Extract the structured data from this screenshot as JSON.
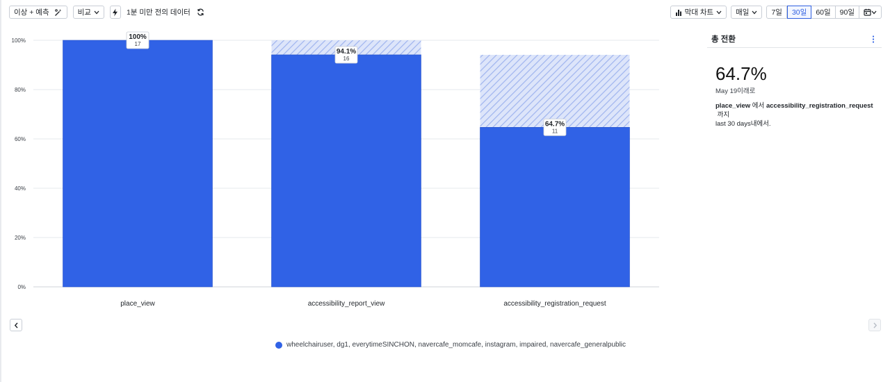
{
  "toolbar": {
    "anomaly_label": "이상 + 예측",
    "compare_label": "비교",
    "freshness_label": "1분 미만 전의 데이터",
    "chart_type_label": "막대 차트",
    "interval_label": "매일",
    "ranges": [
      "7일",
      "30일",
      "60일",
      "90일"
    ],
    "active_range": "30일"
  },
  "panel": {
    "title": "총 전환",
    "value": "64.7%",
    "since": "May 19이래로",
    "from_event": "place_view",
    "from_suffix": " 에서 ",
    "to_event": "accessibility_registration_request",
    "to_suffix": " 까지",
    "period": "last 30 days내에서."
  },
  "legend": {
    "label": "wheelchairuser, dg1, everytimeSINCHON, navercafe_momcafe, instagram, impaired, navercafe_generalpublic",
    "color": "#3062e6"
  },
  "chart_data": {
    "type": "bar",
    "categories": [
      "place_view",
      "accessibility_report_view",
      "accessibility_registration_request"
    ],
    "values": [
      100,
      94.1,
      64.7
    ],
    "value_labels": [
      "100%",
      "94.1%",
      "64.7%"
    ],
    "counts": [
      17,
      16,
      11
    ],
    "dropoff_top": [
      null,
      100,
      94.1
    ],
    "yticks": [
      "0%",
      "20%",
      "40%",
      "60%",
      "80%",
      "100%"
    ],
    "ylim": [
      0,
      100
    ],
    "grid": true,
    "bar_color": "#3062e6",
    "dropoff_color": "#c9d6f6"
  }
}
